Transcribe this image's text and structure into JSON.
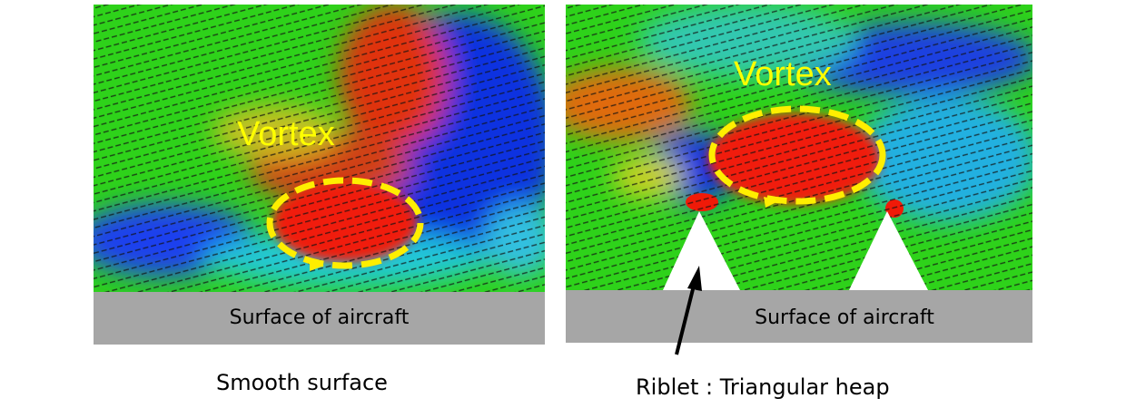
{
  "left_panel": {
    "vortex_label": "Vortex",
    "surface_label": "Surface of aircraft",
    "caption": "Smooth surface"
  },
  "right_panel": {
    "vortex_label": "Vortex",
    "surface_label": "Surface of aircraft",
    "caption": "Riblet : Triangular heap"
  },
  "colors": {
    "high": "#ff1a00",
    "mid": "#22dd00",
    "low": "#0033ee",
    "vortex_outline": "#ffee00",
    "surface": "#a6a6a6"
  }
}
